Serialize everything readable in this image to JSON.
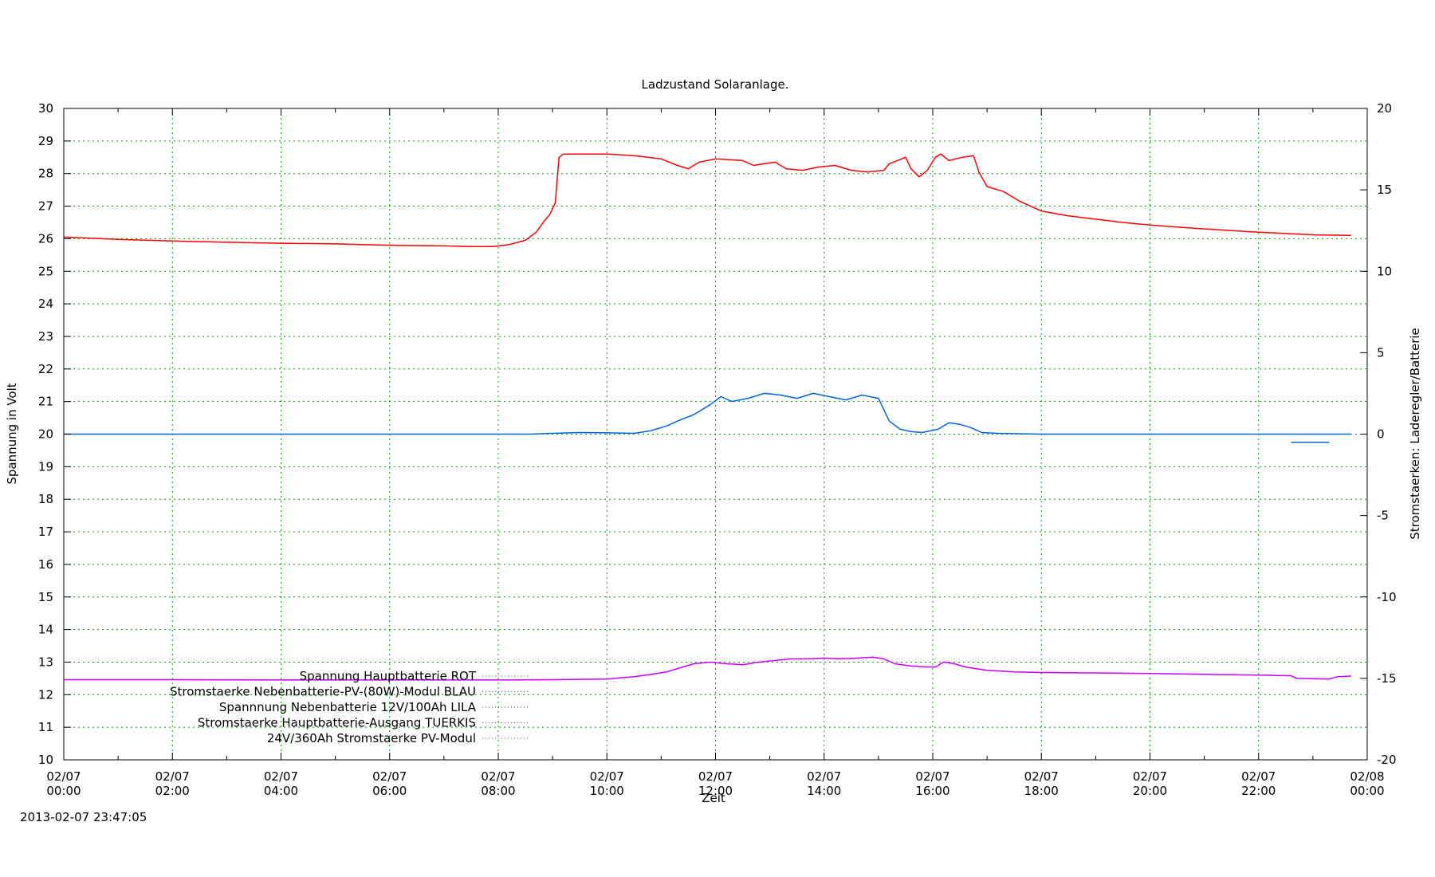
{
  "chart_data": {
    "type": "line",
    "title": "Ladzustand Solaranlage.",
    "xlabel": "Zeit",
    "ylabel": "Spannung in Volt",
    "y2label": "Stromstaerken: Laderegler/Batterie",
    "timestamp": "2013-02-07 23:47:05",
    "xlim_hours": [
      0,
      24
    ],
    "ylim": [
      10,
      30
    ],
    "y2lim": [
      -20,
      20
    ],
    "grid": true,
    "legend_position": "bottom-left",
    "x_ticks": [
      {
        "top": "02/07",
        "bottom": "00:00"
      },
      {
        "top": "02/07",
        "bottom": "02:00"
      },
      {
        "top": "02/07",
        "bottom": "04:00"
      },
      {
        "top": "02/07",
        "bottom": "06:00"
      },
      {
        "top": "02/07",
        "bottom": "08:00"
      },
      {
        "top": "02/07",
        "bottom": "10:00"
      },
      {
        "top": "02/07",
        "bottom": "12:00"
      },
      {
        "top": "02/07",
        "bottom": "14:00"
      },
      {
        "top": "02/07",
        "bottom": "16:00"
      },
      {
        "top": "02/07",
        "bottom": "18:00"
      },
      {
        "top": "02/07",
        "bottom": "20:00"
      },
      {
        "top": "02/07",
        "bottom": "22:00"
      },
      {
        "top": "02/08",
        "bottom": "00:00"
      }
    ],
    "y_ticks": [
      10,
      11,
      12,
      13,
      14,
      15,
      16,
      17,
      18,
      19,
      20,
      21,
      22,
      23,
      24,
      25,
      26,
      27,
      28,
      29,
      30
    ],
    "y2_ticks": [
      -20,
      -15,
      -10,
      -5,
      0,
      5,
      10,
      15,
      20
    ],
    "series": [
      {
        "name": "Spannung Hauptbatterie ROT",
        "axis": "y",
        "color": "#ff0000",
        "x": [
          0,
          1,
          2,
          3,
          4,
          5,
          6,
          7,
          7.5,
          7.9,
          8.2,
          8.5,
          8.7,
          8.85,
          8.95,
          9.05,
          9.12,
          9.2,
          9.5,
          10,
          10.5,
          11,
          11.15,
          11.3,
          11.5,
          11.7,
          12,
          12.3,
          12.5,
          12.7,
          12.9,
          13.1,
          13.3,
          13.6,
          13.9,
          14.2,
          14.5,
          14.8,
          15.1,
          15.2,
          15.5,
          15.6,
          15.75,
          15.9,
          16.05,
          16.15,
          16.3,
          16.55,
          16.75,
          16.85,
          17,
          17.3,
          17.6,
          18,
          18.5,
          19,
          19.5,
          20,
          20.5,
          21,
          21.5,
          22,
          22.5,
          23,
          23.3,
          23.7
        ],
        "values": [
          26.05,
          25.98,
          25.93,
          25.89,
          25.86,
          25.84,
          25.8,
          25.78,
          25.76,
          25.76,
          25.82,
          25.95,
          26.2,
          26.55,
          26.75,
          27.1,
          28.5,
          28.6,
          28.6,
          28.6,
          28.55,
          28.45,
          28.35,
          28.25,
          28.15,
          28.35,
          28.45,
          28.42,
          28.4,
          28.25,
          28.3,
          28.35,
          28.15,
          28.1,
          28.2,
          28.25,
          28.1,
          28.05,
          28.1,
          28.3,
          28.5,
          28.15,
          27.9,
          28.1,
          28.5,
          28.6,
          28.4,
          28.5,
          28.55,
          28.05,
          27.6,
          27.45,
          27.15,
          26.85,
          26.7,
          26.6,
          26.5,
          26.42,
          26.36,
          26.3,
          26.25,
          26.2,
          26.16,
          26.12,
          26.11,
          26.1
        ]
      },
      {
        "name": "Stromstaerke Nebenbatterie-PV-(80W)-Modul BLAU",
        "axis": "y2",
        "color": "#0066dd",
        "x": [
          0,
          8.6,
          9.0,
          9.5,
          10,
          10.5,
          10.8,
          11.1,
          11.3,
          11.6,
          11.9,
          12.1,
          12.3,
          12.6,
          12.9,
          13.2,
          13.5,
          13.8,
          14.1,
          14.4,
          14.7,
          15.0,
          15.2,
          15.4,
          15.6,
          15.8,
          16.1,
          16.3,
          16.5,
          16.7,
          16.9,
          17.2,
          18,
          20,
          22,
          22.6,
          23.3,
          23.7
        ],
        "values": [
          0,
          0,
          0.05,
          0.1,
          0.08,
          0.05,
          0.2,
          0.5,
          0.8,
          1.2,
          1.8,
          2.3,
          2.0,
          2.2,
          2.5,
          2.4,
          2.2,
          2.5,
          2.3,
          2.1,
          2.4,
          2.2,
          0.8,
          0.3,
          0.15,
          0.1,
          0.3,
          0.7,
          0.6,
          0.4,
          0.1,
          0.05,
          0,
          0,
          0,
          0,
          0,
          0
        ]
      },
      {
        "name": "Spannnung Nebenbatterie 12V/100Ah LILA",
        "axis": "y",
        "color": "#cc00ff",
        "x": [
          0,
          2,
          4,
          6,
          8,
          9,
          10,
          10.5,
          10.8,
          11.1,
          11.4,
          11.6,
          11.9,
          12.2,
          12.5,
          12.8,
          13.1,
          13.4,
          13.7,
          14,
          14.3,
          14.6,
          14.9,
          15.1,
          15.3,
          15.6,
          15.9,
          16.05,
          16.2,
          16.4,
          16.6,
          17,
          17.5,
          18,
          20,
          22,
          22.6,
          22.7,
          23.3,
          23.45,
          23.7
        ],
        "values": [
          12.46,
          12.46,
          12.45,
          12.45,
          12.45,
          12.46,
          12.48,
          12.55,
          12.62,
          12.7,
          12.85,
          12.95,
          13.0,
          12.95,
          12.92,
          13.0,
          13.05,
          13.1,
          13.1,
          13.12,
          13.1,
          13.12,
          13.15,
          13.1,
          12.95,
          12.88,
          12.85,
          12.85,
          13.0,
          12.95,
          12.85,
          12.75,
          12.7,
          12.68,
          12.65,
          12.6,
          12.58,
          12.5,
          12.48,
          12.55,
          12.57
        ]
      },
      {
        "name": "Stromstaerke Hauptbatterie-Ausgang TUERKIS",
        "axis": "y2",
        "color": "#0066dd",
        "x": [
          22.6,
          23.3
        ],
        "values": [
          -0.5,
          -0.5
        ]
      },
      {
        "name": "24V/360Ah Stromstaerke PV-Modul",
        "axis": "y2",
        "color": "#cc00ff",
        "x": [],
        "values": []
      }
    ]
  }
}
